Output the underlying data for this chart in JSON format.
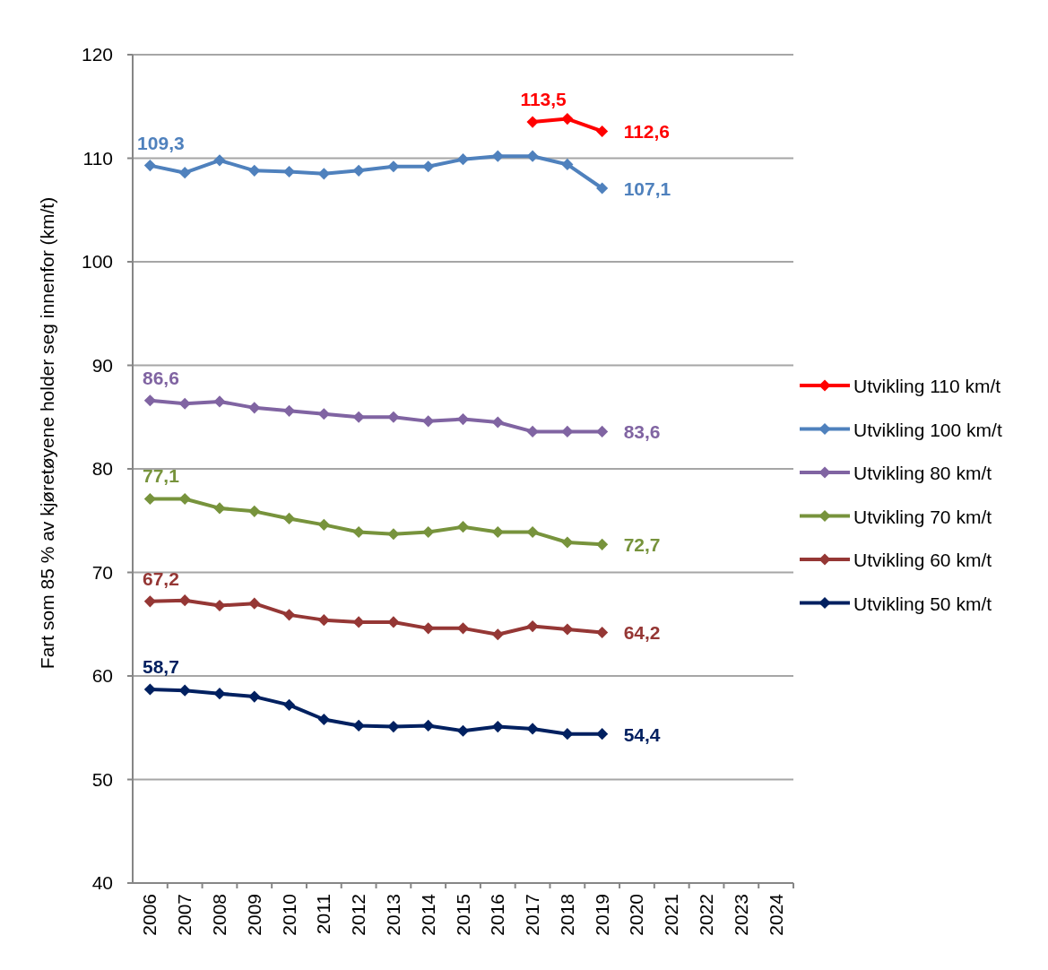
{
  "chart_data": {
    "type": "line",
    "ylabel": "Fart som 85 % av kjøretøyene holder seg innenfor (km/t)",
    "categories": [
      "2006",
      "2007",
      "2008",
      "2009",
      "2010",
      "2011",
      "2012",
      "2013",
      "2014",
      "2015",
      "2016",
      "2017",
      "2018",
      "2019",
      "2020",
      "2021",
      "2022",
      "2023",
      "2024"
    ],
    "series": [
      {
        "name": "Utvikling 110 km/t",
        "color": "#ff0000",
        "values": [
          null,
          null,
          null,
          null,
          null,
          null,
          null,
          null,
          null,
          null,
          null,
          113.5,
          113.8,
          112.6,
          null,
          null,
          null,
          null,
          null
        ],
        "value_labels": [
          null,
          null,
          null,
          null,
          null,
          null,
          null,
          null,
          null,
          null,
          null,
          "113,5",
          null,
          "112,6",
          null,
          null,
          null,
          null,
          null
        ]
      },
      {
        "name": "Utvikling 100 km/t",
        "color": "#4f81bd",
        "values": [
          109.3,
          108.6,
          109.8,
          108.8,
          108.7,
          108.5,
          108.8,
          109.2,
          109.2,
          109.9,
          110.2,
          110.2,
          109.4,
          107.1,
          null,
          null,
          null,
          null,
          null
        ],
        "value_labels": [
          "109,3",
          null,
          null,
          null,
          null,
          null,
          null,
          null,
          null,
          null,
          null,
          null,
          null,
          "107,1",
          null,
          null,
          null,
          null,
          null
        ]
      },
      {
        "name": "Utvikling 80 km/t",
        "color": "#8064a2",
        "values": [
          86.6,
          86.3,
          86.5,
          85.9,
          85.6,
          85.3,
          85.0,
          85.0,
          84.6,
          84.8,
          84.5,
          83.6,
          83.6,
          83.6,
          null,
          null,
          null,
          null,
          null
        ],
        "value_labels": [
          "86,6",
          null,
          null,
          null,
          null,
          null,
          null,
          null,
          null,
          null,
          null,
          null,
          null,
          "83,6",
          null,
          null,
          null,
          null,
          null
        ]
      },
      {
        "name": "Utvikling 70 km/t",
        "color": "#77933c",
        "values": [
          77.1,
          77.1,
          76.2,
          75.9,
          75.2,
          74.6,
          73.9,
          73.7,
          73.9,
          74.4,
          73.9,
          73.9,
          72.9,
          72.7,
          null,
          null,
          null,
          null,
          null
        ],
        "value_labels": [
          "77,1",
          null,
          null,
          null,
          null,
          null,
          null,
          null,
          null,
          null,
          null,
          null,
          null,
          "72,7",
          null,
          null,
          null,
          null,
          null
        ]
      },
      {
        "name": "Utvikling 60 km/t",
        "color": "#953735",
        "values": [
          67.2,
          67.3,
          66.8,
          67.0,
          65.9,
          65.4,
          65.2,
          65.2,
          64.6,
          64.6,
          64.0,
          64.8,
          64.5,
          64.2,
          null,
          null,
          null,
          null,
          null
        ],
        "value_labels": [
          "67,2",
          null,
          null,
          null,
          null,
          null,
          null,
          null,
          null,
          null,
          null,
          null,
          null,
          "64,2",
          null,
          null,
          null,
          null,
          null
        ]
      },
      {
        "name": "Utvikling 50 km/t",
        "color": "#002060",
        "values": [
          58.7,
          58.6,
          58.3,
          58.0,
          57.2,
          55.8,
          55.2,
          55.1,
          55.2,
          54.7,
          55.1,
          54.9,
          54.4,
          54.4,
          null,
          null,
          null,
          null,
          null
        ],
        "value_labels": [
          "58,7",
          null,
          null,
          null,
          null,
          null,
          null,
          null,
          null,
          null,
          null,
          null,
          null,
          "54,4",
          null,
          null,
          null,
          null,
          null
        ]
      }
    ],
    "ylim": [
      40,
      120
    ],
    "yticks": [
      40,
      50,
      60,
      70,
      80,
      90,
      100,
      110,
      120
    ],
    "grid": "y",
    "legend": "right",
    "marker": "diamond",
    "line_style": "solid"
  }
}
